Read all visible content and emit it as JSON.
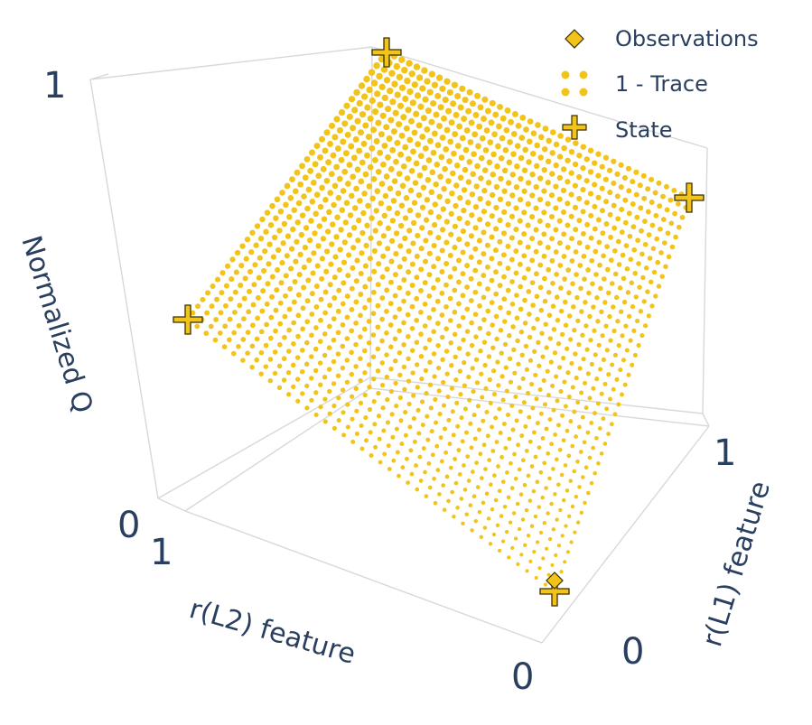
{
  "chart_data": {
    "type": "scatter",
    "subtype": "3d-scatter",
    "axes": {
      "x": {
        "label": "r(L1) feature",
        "range": [
          0,
          1
        ],
        "ticks": [
          "0",
          "1"
        ]
      },
      "y": {
        "label": "r(L2) feature",
        "range": [
          0,
          1
        ],
        "ticks": [
          "0",
          "1"
        ]
      },
      "z": {
        "label": "Normalized Q",
        "range": [
          0,
          1
        ],
        "ticks": [
          "0",
          "1"
        ]
      }
    },
    "legend": {
      "position": "top-right",
      "entries": [
        "Observations",
        "1 - Trace",
        "State"
      ]
    },
    "color": "#f2c318",
    "series": [
      {
        "name": "Observations",
        "marker": "diamond",
        "points": [
          {
            "x": 0,
            "y": 0,
            "z": 0.05
          }
        ]
      },
      {
        "name": "1 - Trace",
        "marker": "circle",
        "surface": "z = (x + y) / 2",
        "x_range": [
          0,
          1
        ],
        "y_range": [
          0,
          1
        ],
        "grid_size": 41
      },
      {
        "name": "State",
        "marker": "cross",
        "points": [
          {
            "x": 0,
            "y": 0,
            "z": 0
          },
          {
            "x": 1,
            "y": 0,
            "z": 0.5
          },
          {
            "x": 0,
            "y": 1,
            "z": 0.5
          },
          {
            "x": 1,
            "y": 1,
            "z": 1
          }
        ]
      }
    ]
  }
}
